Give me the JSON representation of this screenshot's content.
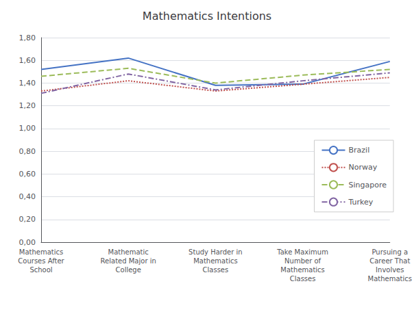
{
  "chart_data": {
    "type": "line",
    "title": "Mathematics Intentions",
    "categories": [
      "Mathematics\nCourses After\nSchool",
      "Mathematic\nRelated Major in\nCollege",
      "Study Harder in\nMathematics\nClasses",
      "Take Maximum\nNumber of\nMathematics\nClasses",
      "Pursuing a\nCareer That\nInvolves\nMathematics"
    ],
    "series": [
      {
        "name": "Brazil",
        "color": "#4472C4",
        "line_style": "solid",
        "values": [
          1.52,
          1.62,
          1.38,
          1.39,
          1.59
        ]
      },
      {
        "name": "Norway",
        "color": "#C0504D",
        "line_style": "dotted",
        "values": [
          1.33,
          1.42,
          1.33,
          1.39,
          1.45
        ]
      },
      {
        "name": "Singapore",
        "color": "#9BBB59",
        "line_style": "dashed",
        "values": [
          1.46,
          1.53,
          1.4,
          1.47,
          1.52
        ]
      },
      {
        "name": "Turkey",
        "color": "#8064A2",
        "line_style": "dashdot",
        "values": [
          1.31,
          1.48,
          1.34,
          1.42,
          1.49
        ]
      }
    ],
    "ylim": [
      0.0,
      1.8
    ],
    "yticks": [
      {
        "value": 0.0,
        "label": "0,00"
      },
      {
        "value": 0.2,
        "label": "0,20"
      },
      {
        "value": 0.4,
        "label": "0,40"
      },
      {
        "value": 0.6,
        "label": "0,60"
      },
      {
        "value": 0.8,
        "label": "0,80"
      },
      {
        "value": 1.0,
        "label": "1,00"
      },
      {
        "value": 1.2,
        "label": "1,20"
      },
      {
        "value": 1.4,
        "label": "1,40"
      },
      {
        "value": 1.6,
        "label": "1,60"
      },
      {
        "value": 1.8,
        "label": "1,80"
      }
    ],
    "grid": true,
    "legend": "right"
  }
}
